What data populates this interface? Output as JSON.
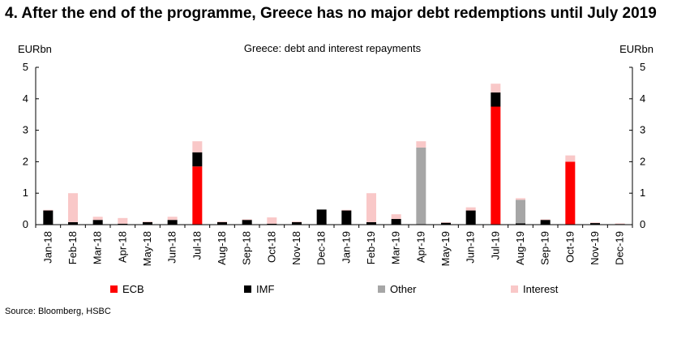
{
  "title": "4. After the end of the programme, Greece has no major debt redemptions until July 2019",
  "source": "Source: Bloomberg, HSBC",
  "chart_data": {
    "type": "bar",
    "stacked": true,
    "title": "Greece: debt and interest repayments",
    "ylabel_left": "EURbn",
    "ylabel_right": "EURbn",
    "ylim": [
      0,
      5
    ],
    "yticks": [
      0,
      1,
      2,
      3,
      4,
      5
    ],
    "categories": [
      "Jan-18",
      "Feb-18",
      "Mar-18",
      "Apr-18",
      "May-18",
      "Jun-18",
      "Jul-18",
      "Aug-18",
      "Sep-18",
      "Oct-18",
      "Nov-18",
      "Dec-18",
      "Jan-19",
      "Feb-19",
      "Mar-19",
      "Apr-19",
      "May-19",
      "Jun-19",
      "Jul-19",
      "Aug-19",
      "Sep-19",
      "Oct-19",
      "Nov-19",
      "Dec-19"
    ],
    "series": [
      {
        "name": "ECB",
        "color": "#ff0000",
        "values": [
          0,
          0,
          0,
          0,
          0,
          0,
          1.85,
          0,
          0,
          0,
          0,
          0,
          0,
          0,
          0,
          0,
          0,
          0,
          3.75,
          0,
          0,
          2.0,
          0,
          0
        ]
      },
      {
        "name": "IMF",
        "color": "#000000",
        "values": [
          0.45,
          0.08,
          0.15,
          0.03,
          0.08,
          0.15,
          0.45,
          0.08,
          0.15,
          0.03,
          0.08,
          0.48,
          0.45,
          0.08,
          0.18,
          0,
          0.06,
          0.45,
          0.45,
          0.04,
          0.15,
          0,
          0.05,
          0.02
        ]
      },
      {
        "name": "Other",
        "color": "#a6a6a6",
        "values": [
          0,
          0,
          0,
          0,
          0,
          0,
          0,
          0,
          0,
          0,
          0,
          0,
          0,
          0,
          0,
          2.45,
          0,
          0,
          0,
          0.75,
          0,
          0,
          0,
          0
        ]
      },
      {
        "name": "Interest",
        "color": "#f9c8c8",
        "values": [
          0.02,
          0.92,
          0.1,
          0.18,
          0.02,
          0.1,
          0.35,
          0.02,
          0.02,
          0.2,
          0.02,
          0,
          0.02,
          0.92,
          0.15,
          0.2,
          0.02,
          0.1,
          0.28,
          0.05,
          0.02,
          0.2,
          0.02,
          0.02
        ]
      }
    ],
    "legend_position": "bottom"
  }
}
